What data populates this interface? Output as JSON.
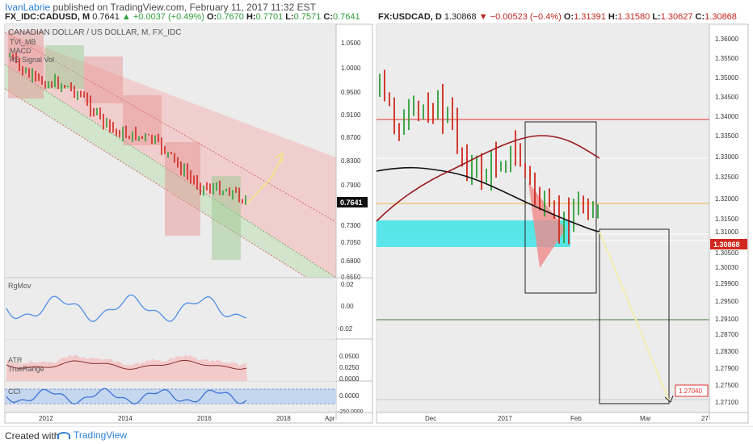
{
  "header": {
    "author": "IvanLabrie",
    "published_text": " published on TradingView.com, February 11, 2017 11:32 EST"
  },
  "left_ticker": {
    "symbol": "FX_IDC:CADUSD, M",
    "price": "0.7641",
    "change": "+0.0037 (+0.49%)",
    "o_label": "O:",
    "o": "0.7670",
    "h_label": "H:",
    "h": "0.7701",
    "l_label": "L:",
    "l": "0.7571",
    "c_label": "C:",
    "c": "0.7641"
  },
  "right_ticker": {
    "symbol": "FX:USDCAD, D",
    "price": "1.30868",
    "change": "−0.00523 (−0.4%)",
    "o_label": "O:",
    "o": "1.31391",
    "h_label": "H:",
    "h": "1.31580",
    "l_label": "L:",
    "l": "1.30627",
    "c_label": "C:",
    "c": "1.30868"
  },
  "left_chart": {
    "watermark": "CANADIAN DOLLAR / US DOLLAR, M, FX_IDC",
    "legend": [
      "TVI_MB",
      "MACD",
      "RE Signal Vol"
    ],
    "price_axis": [
      "1.0500",
      "1.0000",
      "0.9500",
      "0.9100",
      "0.8700",
      "0.8300",
      "0.7900",
      "0.7300",
      "0.7050",
      "0.6800",
      "0.6550"
    ],
    "last_price": "0.7641",
    "time_axis": [
      "2012",
      "2014",
      "2016",
      "2018",
      "Apr"
    ],
    "panes": {
      "rgmov": {
        "label": "RgMov",
        "ticks": [
          "0.02",
          "0.00",
          "-0.02"
        ]
      },
      "atr": {
        "label": "ATR",
        "sublabel": "TrueRange",
        "ticks": [
          "0.0500",
          "0.0250",
          "0.0000"
        ]
      },
      "cci": {
        "label": "CCI",
        "ticks": [
          "0.0000",
          "-250.0000"
        ]
      }
    }
  },
  "right_chart": {
    "price_axis": [
      "1.36000",
      "1.35500",
      "1.35000",
      "1.34500",
      "1.34000",
      "1.33500",
      "1.33000",
      "1.32500",
      "1.32000",
      "1.31500",
      "1.31000",
      "1.30500",
      "1.30030",
      "1.29900",
      "1.29500",
      "1.29100",
      "1.28700",
      "1.28300",
      "1.27900",
      "1.27500",
      "1.27100"
    ],
    "last_price": "1.30868",
    "target_label": "1.27040",
    "time_axis": [
      "Dec",
      "2017",
      "Feb",
      "Mar",
      "27"
    ]
  },
  "footer": {
    "created_label": "Created with",
    "brand": "TradingView"
  },
  "colors": {
    "bull_candle": "#2e9e3a",
    "bear_candle": "#d0281f",
    "channel_red": "#e69999",
    "channel_green": "#9fc89a",
    "cyan_zone": "#3ee4e8",
    "oscillator": "#4f8fe6"
  }
}
